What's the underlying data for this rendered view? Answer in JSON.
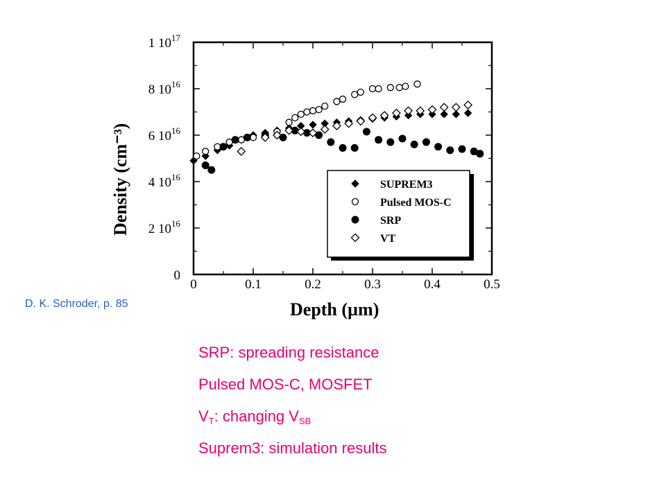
{
  "chart_data": {
    "type": "scatter",
    "xlabel": "Depth  (µm)",
    "ylabel": "Density  (cm⁻³)",
    "xlim": [
      0,
      0.5
    ],
    "ylim": [
      0,
      1e+17
    ],
    "x_ticks": [
      {
        "value": 0,
        "label": "0"
      },
      {
        "value": 0.1,
        "label": "0.1"
      },
      {
        "value": 0.2,
        "label": "0.2"
      },
      {
        "value": 0.3,
        "label": "0.3"
      },
      {
        "value": 0.4,
        "label": "0.4"
      },
      {
        "value": 0.5,
        "label": "0.5"
      }
    ],
    "y_ticks": [
      {
        "value": 0,
        "label": "0",
        "mant": "0",
        "exp": ""
      },
      {
        "value": 2e+16,
        "label": "2 10^16",
        "mant": "2 10",
        "exp": "16"
      },
      {
        "value": 4e+16,
        "label": "4 10^16",
        "mant": "4 10",
        "exp": "16"
      },
      {
        "value": 6e+16,
        "label": "6 10^16",
        "mant": "6 10",
        "exp": "16"
      },
      {
        "value": 8e+16,
        "label": "8 10^16",
        "mant": "8 10",
        "exp": "16"
      },
      {
        "value": 1e+17,
        "label": "1 10^17",
        "mant": "1 10",
        "exp": "17"
      }
    ],
    "legend_position": "lower-right",
    "series": [
      {
        "name": "SUPREM3",
        "marker": "diamond-filled",
        "x": [
          0.0,
          0.02,
          0.04,
          0.06,
          0.08,
          0.1,
          0.12,
          0.14,
          0.16,
          0.18,
          0.2,
          0.22,
          0.24,
          0.26,
          0.28,
          0.3,
          0.32,
          0.34,
          0.36,
          0.38,
          0.4,
          0.42,
          0.44,
          0.46
        ],
        "y": [
          4.9e+16,
          5.1e+16,
          5.35e+16,
          5.55e+16,
          5.8e+16,
          6e+16,
          6.1e+16,
          6.2e+16,
          6.3e+16,
          6.4e+16,
          6.45e+16,
          6.5e+16,
          6.55e+16,
          6.6e+16,
          6.65e+16,
          6.7e+16,
          6.75e+16,
          6.8e+16,
          6.85e+16,
          6.9e+16,
          6.9e+16,
          6.9e+16,
          6.9e+16,
          6.95e+16
        ]
      },
      {
        "name": "Pulsed MOS-C",
        "marker": "circle-open",
        "x": [
          0.005,
          0.02,
          0.04,
          0.06,
          0.08,
          0.1,
          0.12,
          0.14,
          0.16,
          0.17,
          0.18,
          0.19,
          0.2,
          0.21,
          0.22,
          0.24,
          0.25,
          0.27,
          0.28,
          0.3,
          0.31,
          0.33,
          0.345,
          0.355,
          0.375
        ],
        "y": [
          5.1e+16,
          5.3e+16,
          5.5e+16,
          5.7e+16,
          5.8e+16,
          5.9e+16,
          6e+16,
          6.15e+16,
          6.55e+16,
          6.75e+16,
          6.9e+16,
          7e+16,
          7.05e+16,
          7.1e+16,
          7.25e+16,
          7.45e+16,
          7.55e+16,
          7.75e+16,
          7.85e+16,
          8e+16,
          8e+16,
          8.05e+16,
          8.05e+16,
          8.1e+16,
          8.2e+16
        ]
      },
      {
        "name": "SRP",
        "marker": "circle-filled",
        "x": [
          0.02,
          0.03,
          0.05,
          0.07,
          0.09,
          0.12,
          0.15,
          0.17,
          0.19,
          0.21,
          0.23,
          0.25,
          0.27,
          0.29,
          0.31,
          0.33,
          0.35,
          0.37,
          0.39,
          0.41,
          0.43,
          0.45,
          0.47,
          0.48
        ],
        "y": [
          4.7e+16,
          4.5e+16,
          5.5e+16,
          5.8e+16,
          5.9e+16,
          6e+16,
          5.9e+16,
          6.2e+16,
          6.1e+16,
          6e+16,
          5.7e+16,
          5.45e+16,
          5.45e+16,
          6.15e+16,
          5.8e+16,
          5.7e+16,
          5.85e+16,
          5.6e+16,
          5.7e+16,
          5.5e+16,
          5.35e+16,
          5.4e+16,
          5.3e+16,
          5.2e+16
        ]
      },
      {
        "name": "VT",
        "marker": "diamond-open",
        "x": [
          0.08,
          0.12,
          0.14,
          0.16,
          0.18,
          0.2,
          0.22,
          0.24,
          0.26,
          0.28,
          0.3,
          0.32,
          0.34,
          0.36,
          0.38,
          0.4,
          0.42,
          0.44,
          0.46
        ],
        "y": [
          5.3e+16,
          5.9e+16,
          6e+16,
          6.2e+16,
          6.15e+16,
          6.1e+16,
          6.25e+16,
          6.4e+16,
          6.5e+16,
          6.6e+16,
          6.75e+16,
          6.85e+16,
          6.95e+16,
          7.05e+16,
          7.05e+16,
          7.1e+16,
          7.2e+16,
          7.2e+16,
          7.3e+16
        ]
      }
    ]
  },
  "credit": "D. K. Schroder, p. 85",
  "notes": {
    "srp": "SRP: spreading resistance",
    "pulsed": "Pulsed MOS-C, MOSFET",
    "vt_v": "V",
    "vt_sub": "T",
    "vt_mid": ": changing V",
    "vt_sub2": "SB",
    "suprem": "Suprem3: simulation results"
  }
}
